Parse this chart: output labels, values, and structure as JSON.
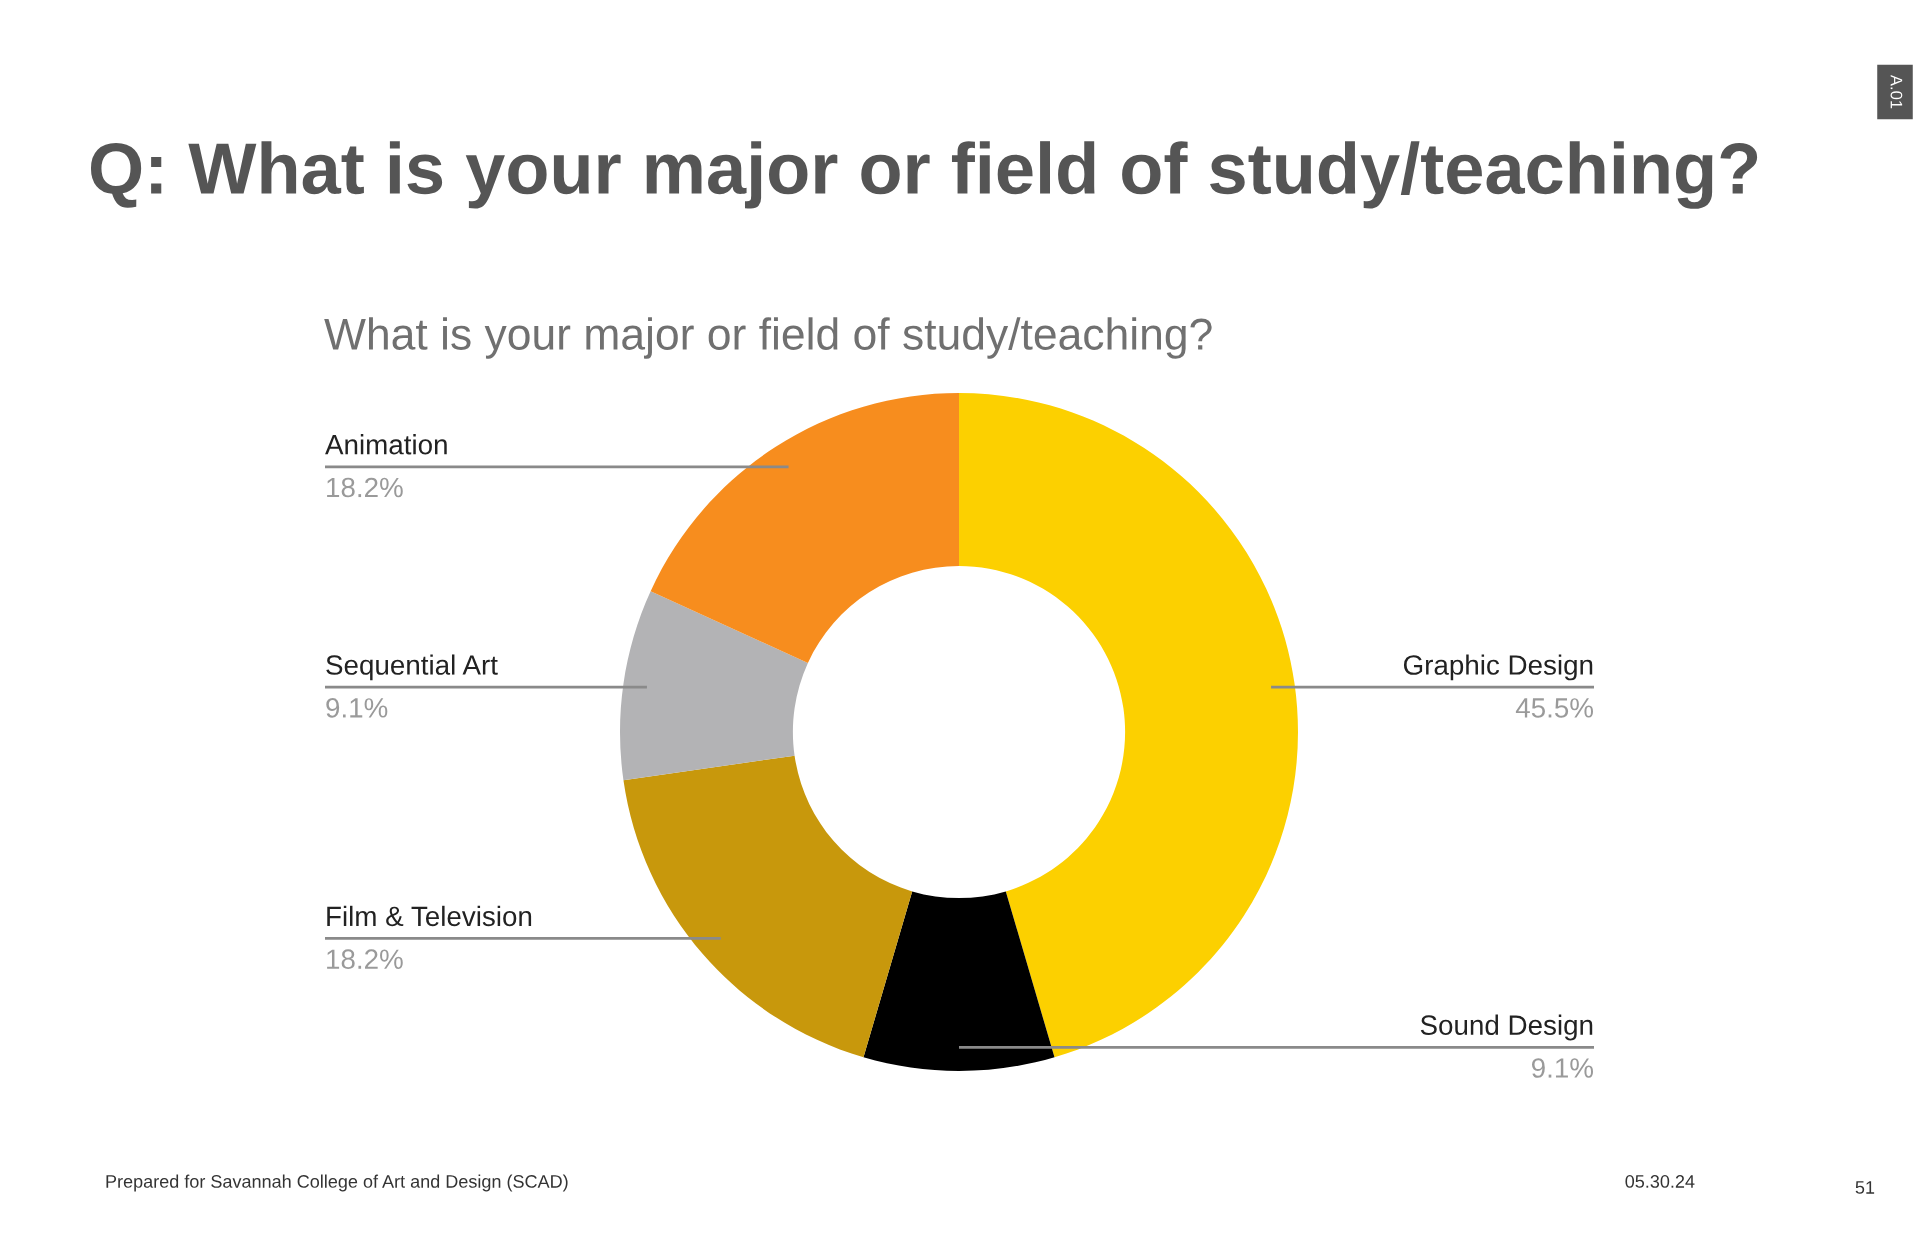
{
  "chart_data": {
    "type": "donut",
    "title": "Q: What is your major or field of study/teaching?",
    "subtitle": "What is your major or field of study/teaching?",
    "categories": [
      "Graphic Design",
      "Sound Design",
      "Film & Television",
      "Sequential Art",
      "Animation"
    ],
    "values": [
      45.5,
      9.1,
      18.2,
      9.1,
      18.2
    ],
    "value_labels": [
      "45.5%",
      "9.1%",
      "18.2%",
      "9.1%",
      "18.2%"
    ],
    "colors": [
      "#fcd000",
      "#000000",
      "#c8980c",
      "#b3b3b5",
      "#f78d1e"
    ],
    "legend": false,
    "annotations": [
      "Prepared for Savannah College of Art and Design (SCAD)",
      "05.30.24",
      "51",
      "A.01"
    ]
  }
}
